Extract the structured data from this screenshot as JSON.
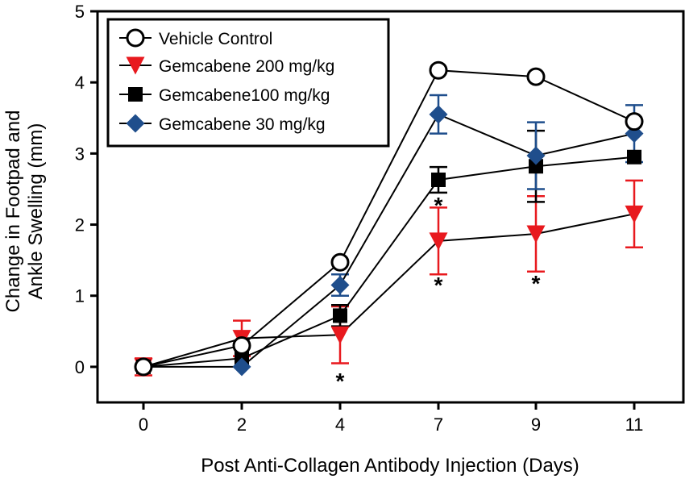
{
  "chart_data": {
    "type": "line",
    "title": "",
    "xlabel": "Post Anti-Collagen Antibody Injection (Days)",
    "ylabel_lines": [
      "Change in Footpad and",
      "Ankle Swelling (mm)"
    ],
    "x": [
      0,
      2,
      4,
      7,
      9,
      11
    ],
    "x_tick_labels": [
      "0",
      "2",
      "4",
      "7",
      "9",
      "11"
    ],
    "y_ticks": [
      0,
      1,
      2,
      3,
      4,
      5
    ],
    "y_tick_labels": [
      "0",
      "1",
      "2",
      "3",
      "4",
      "5"
    ],
    "ylim": [
      -0.5,
      5
    ],
    "legend_position": "top-left",
    "series": [
      {
        "name": "Vehicle Control",
        "marker": "circle-open",
        "color": "#000000",
        "fill": "#ffffff",
        "values": [
          0.0,
          0.3,
          1.47,
          4.17,
          4.08,
          3.45
        ],
        "errors": [
          0.0,
          0.0,
          0.0,
          0.0,
          0.0,
          0.0
        ]
      },
      {
        "name": "Gemcabene 200 mg/kg",
        "marker": "triangle-down",
        "color": "#e8191e",
        "fill": "#e8191e",
        "values": [
          0.0,
          0.4,
          0.45,
          1.77,
          1.87,
          2.15
        ],
        "errors": [
          0.12,
          0.25,
          0.4,
          0.47,
          0.53,
          0.47
        ]
      },
      {
        "name": "Gemcabene100 mg/kg",
        "marker": "square",
        "color": "#000000",
        "fill": "#000000",
        "values": [
          0.0,
          0.12,
          0.72,
          2.63,
          2.82,
          2.95
        ],
        "errors": [
          0.0,
          0.0,
          0.15,
          0.18,
          0.5,
          0.0
        ]
      },
      {
        "name": "Gemcabene 30 mg/kg",
        "marker": "diamond",
        "color": "#1f4e8c",
        "fill": "#1f4e8c",
        "values": [
          0.0,
          0.0,
          1.15,
          3.55,
          2.97,
          3.28
        ],
        "errors": [
          0.0,
          0.0,
          0.15,
          0.27,
          0.47,
          0.4
        ]
      }
    ],
    "annotations": [
      {
        "x": 4,
        "y": -0.17,
        "text": "*"
      },
      {
        "x": 7,
        "y": 2.3,
        "text": "*"
      },
      {
        "x": 7,
        "y": 1.18,
        "text": "*"
      },
      {
        "x": 9,
        "y": 1.2,
        "text": "*"
      }
    ]
  }
}
